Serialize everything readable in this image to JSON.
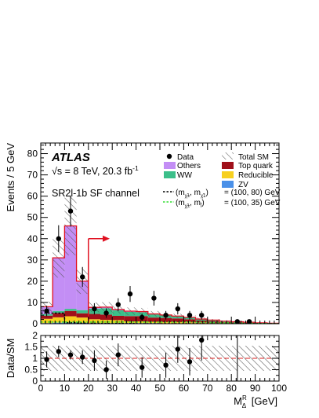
{
  "chart_data": [
    {
      "type": "bar",
      "experiment": "ATLAS",
      "energy_line": "√s = 8 TeV, 20.3 fb",
      "energy_sup": "-1",
      "region_label": "SR2l-1b SF channel",
      "ylabel": "Events / 5 GeV",
      "ylim": [
        0,
        85
      ],
      "yticks": [
        0,
        10,
        20,
        30,
        40,
        50,
        60,
        70,
        80
      ],
      "xlim": [
        0,
        100
      ],
      "xticks": [
        0,
        10,
        20,
        30,
        40,
        50,
        60,
        70,
        80,
        90,
        100
      ],
      "grid": false,
      "legend_placement": "top-right",
      "bin_edges": [
        0,
        5,
        10,
        15,
        20,
        25,
        30,
        35,
        40,
        45,
        50,
        55,
        60,
        65,
        70,
        75,
        80,
        85,
        90,
        95,
        100
      ],
      "stack": [
        {
          "name": "ZV",
          "color": "#4a90e8",
          "values": [
            0.3,
            0.5,
            0.5,
            0.4,
            0.3,
            0.3,
            0.3,
            0.3,
            0.3,
            0.3,
            0.2,
            0.2,
            0.2,
            0.2,
            0.1,
            0.1,
            0.1,
            0.1,
            0.0,
            0.0
          ]
        },
        {
          "name": "Reducible",
          "color": "#f7d020",
          "values": [
            2.0,
            2.5,
            3.0,
            2.5,
            1.8,
            1.5,
            1.4,
            0.8,
            0.8,
            0.6,
            0.5,
            0.5,
            0.4,
            0.3,
            0.2,
            0.2,
            0.1,
            0.1,
            0.1,
            0.0
          ]
        },
        {
          "name": "Top quark",
          "color": "#a0101a",
          "values": [
            1.5,
            2.0,
            2.5,
            2.0,
            2.5,
            2.5,
            2.0,
            2.5,
            2.5,
            2.0,
            2.0,
            1.8,
            1.5,
            1.0,
            0.8,
            0.5,
            0.4,
            0.3,
            0.2,
            0.1
          ]
        },
        {
          "name": "WW",
          "color": "#3cbf8a",
          "values": [
            0.7,
            1.0,
            1.0,
            1.5,
            2.5,
            3.0,
            2.6,
            2.0,
            1.8,
            1.5,
            1.2,
            1.0,
            0.8,
            0.6,
            0.5,
            0.3,
            0.3,
            0.2,
            0.1,
            0.1
          ]
        },
        {
          "name": "Others",
          "color": "#c38ef5",
          "values": [
            3.5,
            25.0,
            39.0,
            13.6,
            0.6,
            0.5,
            0.4,
            0.3,
            0.3,
            0.2,
            0.2,
            0.1,
            0.1,
            0.1,
            0.1,
            0.1,
            0.0,
            0.0,
            0.0,
            0.0
          ]
        }
      ],
      "total_sm": {
        "name": "Total SM",
        "values": [
          8.0,
          31.0,
          46.0,
          20.0,
          7.7,
          7.8,
          6.7,
          5.9,
          5.7,
          4.6,
          4.1,
          3.6,
          3.0,
          2.2,
          1.7,
          1.2,
          0.9,
          0.7,
          0.4,
          0.2
        ],
        "rel_unc": 0.3
      },
      "signal_curves": [
        {
          "name": "(100, 80) GeV",
          "color": "#000000",
          "values": [
            5.0,
            5.0,
            0.5,
            0.3,
            0.2,
            0.1,
            0.1,
            0.1,
            0.0,
            0.0,
            0.0,
            0.0,
            0.0,
            0.0,
            0.0,
            0.0,
            0.0,
            0.0,
            0.0,
            0.0
          ]
        },
        {
          "name": "(100, 35) GeV",
          "color": "#33dd33",
          "values": [
            0.8,
            0.8,
            0.8,
            0.8,
            0.8,
            0.8,
            0.8,
            0.8,
            0.8,
            0.8,
            0.8,
            0.8,
            0.8,
            0.7,
            0.5,
            0.4,
            0.3,
            0.2,
            0.1,
            0.0
          ]
        }
      ],
      "data": {
        "name": "Data",
        "x": [
          2.5,
          7.5,
          12.5,
          17.5,
          22.5,
          27.5,
          32.5,
          37.5,
          42.5,
          47.5,
          52.5,
          57.5,
          62.5,
          67.5,
          82.5,
          87.5
        ],
        "y": [
          6,
          40,
          53,
          22,
          7,
          5,
          9,
          14,
          3,
          12,
          4,
          7,
          4,
          4,
          1,
          1
        ]
      },
      "cut_arrow": {
        "x": 20,
        "y_low": 0,
        "y_high": 40,
        "x_end": 26
      },
      "legend": {
        "data": "Data",
        "total_sm": "Total SM",
        "others": "Others",
        "top": "Top quark",
        "ww": "WW",
        "reducible": "Reducible",
        "zv": "ZV",
        "sig1_text": "= (100, 80) GeV",
        "sig2_text": "= (100, 35) GeV"
      }
    },
    {
      "type": "scatter",
      "ylabel": "Data/SM",
      "xlabel": "M",
      "xlabel_sup": "R",
      "xlabel_sub": "Δ",
      "xlabel_unit": "[GeV]",
      "ylim": [
        0,
        2
      ],
      "yticks": [
        0,
        0.5,
        1,
        1.5,
        2
      ],
      "xlim": [
        0,
        100
      ],
      "xticks": [
        0,
        10,
        20,
        30,
        40,
        50,
        60,
        70,
        80,
        90,
        100
      ],
      "band": 0.55,
      "ratio": {
        "x": [
          2.5,
          7.5,
          12.5,
          17.5,
          22.5,
          27.5,
          32.5,
          42.5,
          52.5,
          57.5,
          62.5,
          67.5
        ],
        "y": [
          0.95,
          1.3,
          1.15,
          1.05,
          0.9,
          0.5,
          1.15,
          0.6,
          0.7,
          1.4,
          0.85,
          1.8
        ],
        "err": [
          0.35,
          0.25,
          0.2,
          0.3,
          0.45,
          0.4,
          0.5,
          0.45,
          0.55,
          0.6,
          0.6,
          0.9
        ]
      }
    }
  ]
}
